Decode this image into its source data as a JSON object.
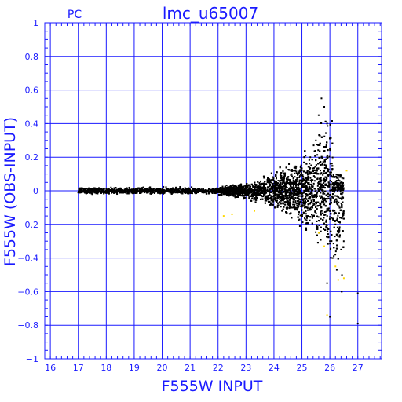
{
  "chart_data": {
    "type": "scatter",
    "title": "lmc_u65007",
    "subtitle": "PC",
    "xlabel": "F555W INPUT",
    "ylabel": "F555W (OBS-INPUT)",
    "xlim": [
      15.8,
      27.85
    ],
    "ylim": [
      -1,
      1
    ],
    "x_ticks": [
      16,
      17,
      18,
      19,
      20,
      21,
      22,
      23,
      24,
      25,
      26,
      27
    ],
    "y_ticks": [
      -1,
      -0.8,
      -0.6,
      -0.4,
      -0.2,
      0,
      0.2,
      0.4,
      0.6,
      0.8,
      1
    ],
    "x_tick_labels": [
      "16",
      "17",
      "18",
      "19",
      "20",
      "21",
      "22",
      "23",
      "24",
      "25",
      "26",
      "27"
    ],
    "y_tick_labels": [
      "−1",
      "−0.8",
      "−0.6",
      "−0.4",
      "−0.2",
      "0",
      "0.2",
      "0.4",
      "0.6",
      "0.8",
      "1"
    ],
    "grid": true,
    "colors": {
      "axis": "#1a1aff",
      "points": "#000000",
      "flagged_points": "#ffd700"
    },
    "series": [
      {
        "color": "#000000",
        "points": [
          [
            17.05,
            0.0
          ],
          [
            17.1,
            -0.01
          ],
          [
            17.2,
            0.01
          ],
          [
            17.3,
            0.0
          ],
          [
            17.4,
            -0.01
          ],
          [
            17.5,
            0.01
          ],
          [
            17.6,
            0.0
          ],
          [
            17.7,
            -0.01
          ],
          [
            17.8,
            0.01
          ],
          [
            17.9,
            0.0
          ],
          [
            18.0,
            0.01
          ],
          [
            18.1,
            -0.01
          ],
          [
            18.2,
            0.0
          ],
          [
            18.4,
            0.0
          ],
          [
            18.6,
            -0.01
          ],
          [
            18.8,
            0.0
          ],
          [
            19.0,
            0.0
          ],
          [
            19.2,
            0.01
          ],
          [
            19.5,
            -0.01
          ],
          [
            19.8,
            0.0
          ],
          [
            20.0,
            0.0
          ],
          [
            20.3,
            0.01
          ],
          [
            20.5,
            -0.01
          ],
          [
            20.8,
            0.0
          ],
          [
            21.0,
            0.0
          ],
          [
            21.3,
            0.01
          ],
          [
            21.5,
            -0.01
          ],
          [
            21.8,
            0.0
          ],
          [
            22.0,
            0.01
          ],
          [
            22.2,
            -0.02
          ],
          [
            22.5,
            0.02
          ],
          [
            22.7,
            -0.02
          ],
          [
            23.0,
            0.03
          ],
          [
            23.2,
            -0.03
          ],
          [
            23.5,
            0.04
          ],
          [
            23.7,
            -0.04
          ],
          [
            24.0,
            0.06
          ],
          [
            24.2,
            -0.05
          ],
          [
            24.5,
            0.08
          ],
          [
            24.7,
            -0.07
          ],
          [
            25.0,
            0.12
          ],
          [
            25.2,
            -0.1
          ],
          [
            25.3,
            0.2
          ],
          [
            25.5,
            0.3
          ],
          [
            25.6,
            0.45
          ],
          [
            25.7,
            0.55
          ],
          [
            25.8,
            0.5
          ],
          [
            25.9,
            0.4
          ],
          [
            26.0,
            0.25
          ],
          [
            26.0,
            -0.3
          ],
          [
            26.1,
            -0.4
          ],
          [
            26.2,
            -0.2
          ],
          [
            26.3,
            -0.25
          ],
          [
            26.4,
            -0.35
          ],
          [
            25.9,
            -0.55
          ],
          [
            26.0,
            -0.75
          ],
          [
            27.0,
            -0.61
          ],
          [
            27.0,
            -0.79
          ]
        ]
      },
      {
        "color": "#ffd700",
        "points": [
          [
            22.2,
            -0.15
          ],
          [
            22.5,
            -0.14
          ],
          [
            23.3,
            -0.12
          ],
          [
            25.6,
            -0.25
          ],
          [
            25.8,
            -0.33
          ],
          [
            26.2,
            -0.45
          ],
          [
            26.3,
            -0.53
          ],
          [
            26.5,
            -0.52
          ],
          [
            25.9,
            -0.74
          ],
          [
            26.6,
            0.12
          ]
        ]
      }
    ]
  }
}
